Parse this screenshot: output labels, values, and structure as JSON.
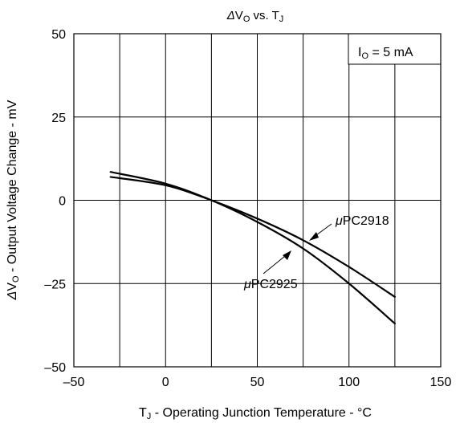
{
  "chart_data": {
    "type": "line",
    "title": {
      "delta": "Δ",
      "main": "V",
      "sub": "O",
      "rest": " vs. T",
      "sub2": "J"
    },
    "xlabel": {
      "main": "T",
      "sub": "J",
      "rest": " - Operating Junction Temperature - °C"
    },
    "ylabel": {
      "delta": "Δ",
      "main": "V",
      "sub": "O",
      "rest": " - Output Voltage Change - mV"
    },
    "xlim": [
      -50,
      150
    ],
    "ylim": [
      -50,
      50
    ],
    "x_ticks": [
      -50,
      0,
      50,
      100,
      150
    ],
    "x_tick_labels": [
      "–50",
      "0",
      "50",
      "100",
      "150"
    ],
    "y_ticks": [
      -50,
      -25,
      0,
      25,
      50
    ],
    "y_tick_labels": [
      "–50",
      "–25",
      "0",
      "25",
      "50"
    ],
    "x_grid": [
      -25,
      0,
      25,
      50,
      75,
      100,
      125
    ],
    "y_grid": [
      -25,
      0,
      25
    ],
    "condition": {
      "main": "I",
      "sub": "O",
      "rest": " = 5 mA"
    },
    "series": [
      {
        "name": {
          "mu": "μ",
          "text": "PC2918"
        },
        "x": [
          -30,
          0,
          25,
          50,
          75,
          100,
          125
        ],
        "y": [
          7,
          4.5,
          0,
          -5.5,
          -12,
          -20,
          -29
        ]
      },
      {
        "name": {
          "mu": "μ",
          "text": "PC2925"
        },
        "x": [
          -30,
          0,
          25,
          50,
          75,
          100,
          125
        ],
        "y": [
          8.5,
          5,
          0,
          -6.5,
          -14.5,
          -25,
          -37
        ]
      }
    ]
  }
}
